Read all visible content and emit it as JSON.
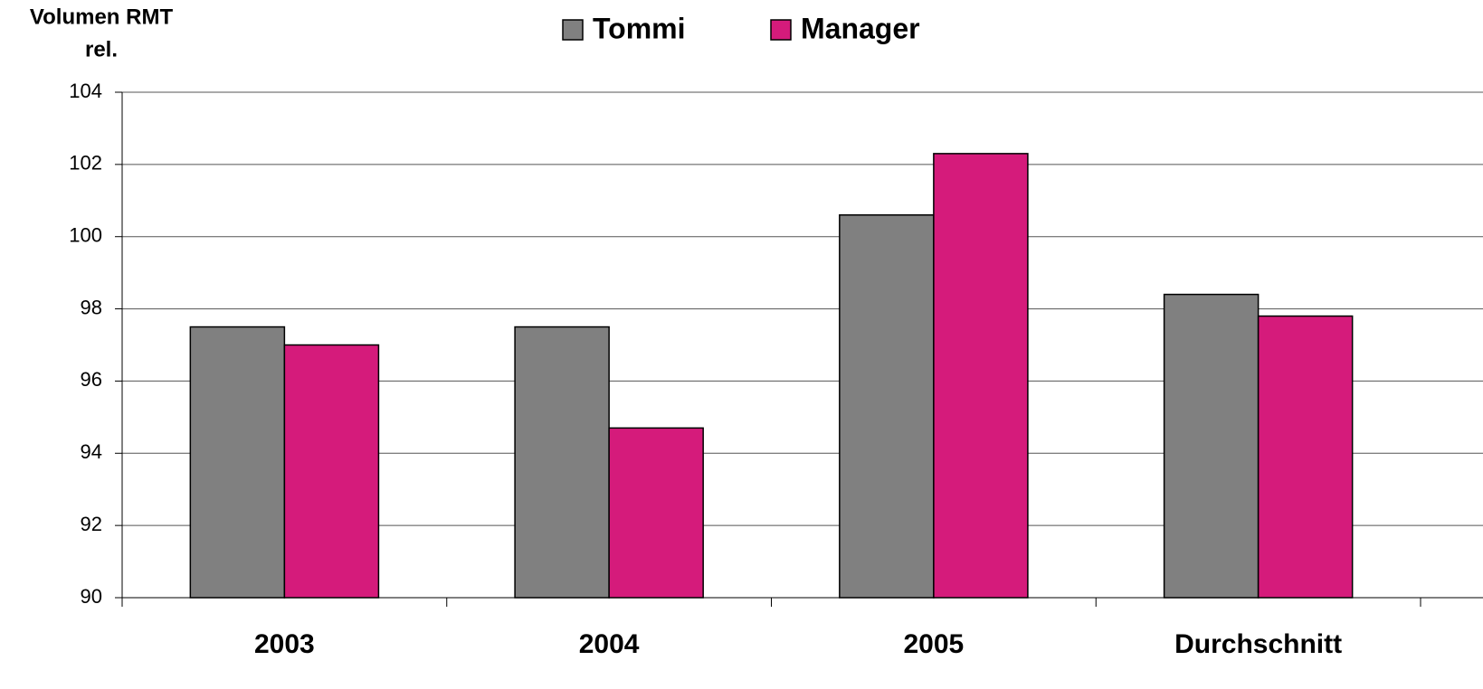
{
  "chart_data": {
    "type": "bar",
    "ylabel": [
      "Volumen RMT",
      "rel."
    ],
    "categories": [
      "2003",
      "2004",
      "2005",
      "Durchschnitt"
    ],
    "series": [
      {
        "name": "Tommi",
        "color": "#808080",
        "values": [
          97.5,
          97.5,
          100.6,
          98.4
        ]
      },
      {
        "name": "Manager",
        "color": "#d51b7b",
        "values": [
          97.0,
          94.7,
          102.3,
          97.8
        ]
      }
    ],
    "ylim": [
      90,
      104
    ],
    "yticks": [
      90,
      92,
      94,
      96,
      98,
      100,
      102,
      104
    ],
    "grid": true,
    "legend": "top"
  }
}
